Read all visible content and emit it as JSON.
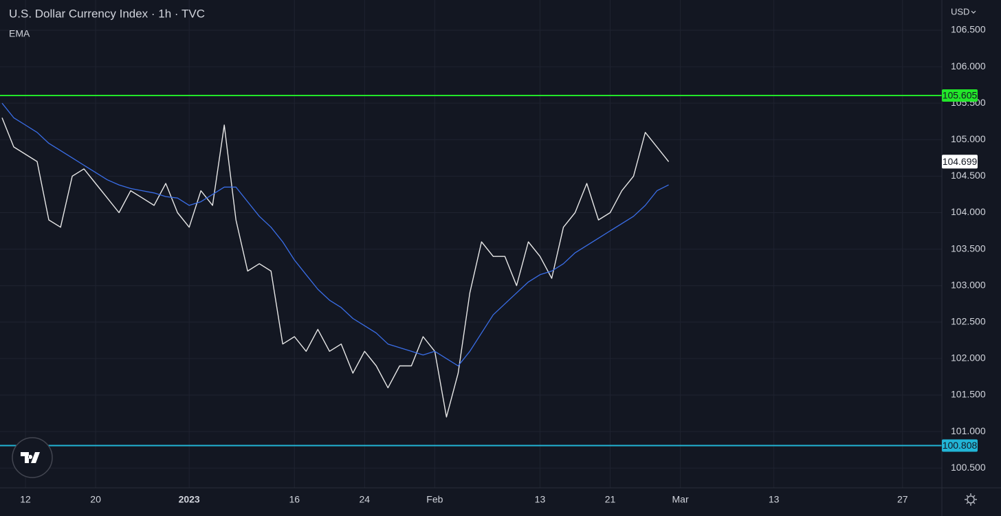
{
  "chart_data": {
    "type": "line",
    "title": "U.S. Dollar Currency Index · 1h · TVC",
    "indicator": "EMA",
    "currency": "USD",
    "categories": [
      null,
      null,
      "12",
      null,
      null,
      null,
      null,
      null,
      "20",
      null,
      null,
      null,
      null,
      null,
      null,
      null,
      "2023",
      null,
      null,
      null,
      null,
      null,
      null,
      null,
      null,
      "16",
      null,
      null,
      null,
      null,
      null,
      "24",
      null,
      null,
      null,
      null,
      null,
      "Feb",
      null,
      null,
      null,
      null,
      null,
      null,
      null,
      null,
      "13",
      null,
      null,
      null,
      null,
      null,
      "21",
      null,
      null,
      null,
      null,
      null,
      "Mar",
      null,
      null,
      null,
      null,
      null,
      null,
      null,
      "13",
      null,
      null,
      null,
      null,
      null,
      null,
      null,
      null,
      null,
      null,
      "27",
      null,
      null,
      null
    ],
    "series": [
      {
        "color": "#e8e8e8",
        "values": [
          105.3,
          104.9,
          104.8,
          104.7,
          103.9,
          103.8,
          104.5,
          104.6,
          104.4,
          104.2,
          104.0,
          104.3,
          104.2,
          104.1,
          104.4,
          104.0,
          103.8,
          104.3,
          104.1,
          105.2,
          103.9,
          103.2,
          103.3,
          103.2,
          102.2,
          102.3,
          102.1,
          102.4,
          102.1,
          102.2,
          101.8,
          102.1,
          101.9,
          101.6,
          101.9,
          101.9,
          102.3,
          102.1,
          101.2,
          101.8,
          102.9,
          103.6,
          103.4,
          103.4,
          103.0,
          103.6,
          103.4,
          103.1,
          103.8,
          104.0,
          104.4,
          103.9,
          104.0,
          104.3,
          104.5,
          105.1,
          104.9,
          104.699,
          null,
          null,
          null,
          null,
          null,
          null,
          null,
          null,
          null,
          null,
          null,
          null,
          null,
          null,
          null,
          null,
          null,
          null,
          null,
          null,
          null,
          null,
          null
        ]
      },
      {
        "name": "EMA",
        "color": "#3a6ee8",
        "values": [
          105.5,
          105.3,
          105.2,
          105.1,
          104.95,
          104.85,
          104.75,
          104.65,
          104.55,
          104.45,
          104.38,
          104.33,
          104.3,
          104.27,
          104.22,
          104.2,
          104.1,
          104.15,
          104.25,
          104.35,
          104.35,
          104.15,
          103.95,
          103.8,
          103.6,
          103.35,
          103.15,
          102.95,
          102.8,
          102.7,
          102.55,
          102.45,
          102.35,
          102.2,
          102.15,
          102.1,
          102.05,
          102.1,
          102.0,
          101.9,
          102.1,
          102.35,
          102.6,
          102.75,
          102.9,
          103.05,
          103.15,
          103.2,
          103.3,
          103.45,
          103.55,
          103.65,
          103.75,
          103.85,
          103.95,
          104.1,
          104.3,
          104.38,
          null,
          null,
          null,
          null,
          null,
          null,
          null,
          null,
          null,
          null,
          null,
          null,
          null,
          null,
          null,
          null,
          null,
          null,
          null,
          null,
          null,
          null,
          null
        ]
      }
    ],
    "ylim": [
      100.229,
      106.914
    ],
    "yticks": [
      {
        "value": 100.5,
        "label": "100.500"
      },
      {
        "value": 101.0,
        "label": "101.000"
      },
      {
        "value": 101.5,
        "label": "101.500"
      },
      {
        "value": 102.0,
        "label": "102.000"
      },
      {
        "value": 102.5,
        "label": "102.500"
      },
      {
        "value": 103.0,
        "label": "103.000"
      },
      {
        "value": 103.5,
        "label": "103.500"
      },
      {
        "value": 104.0,
        "label": "104.000"
      },
      {
        "value": 104.5,
        "label": "104.500"
      },
      {
        "value": 105.0,
        "label": "105.000"
      },
      {
        "value": 105.5,
        "label": "105.500"
      },
      {
        "value": 106.0,
        "label": "106.000"
      },
      {
        "value": 106.5,
        "label": "106.500"
      }
    ],
    "hlines": [
      {
        "value": 105.605,
        "label": "105.605",
        "color": "#22e62a"
      },
      {
        "value": 100.808,
        "label": "100.808",
        "color": "#22b5d6"
      }
    ],
    "last_value": {
      "value": 104.699,
      "label": "104.699"
    },
    "grid": true
  }
}
